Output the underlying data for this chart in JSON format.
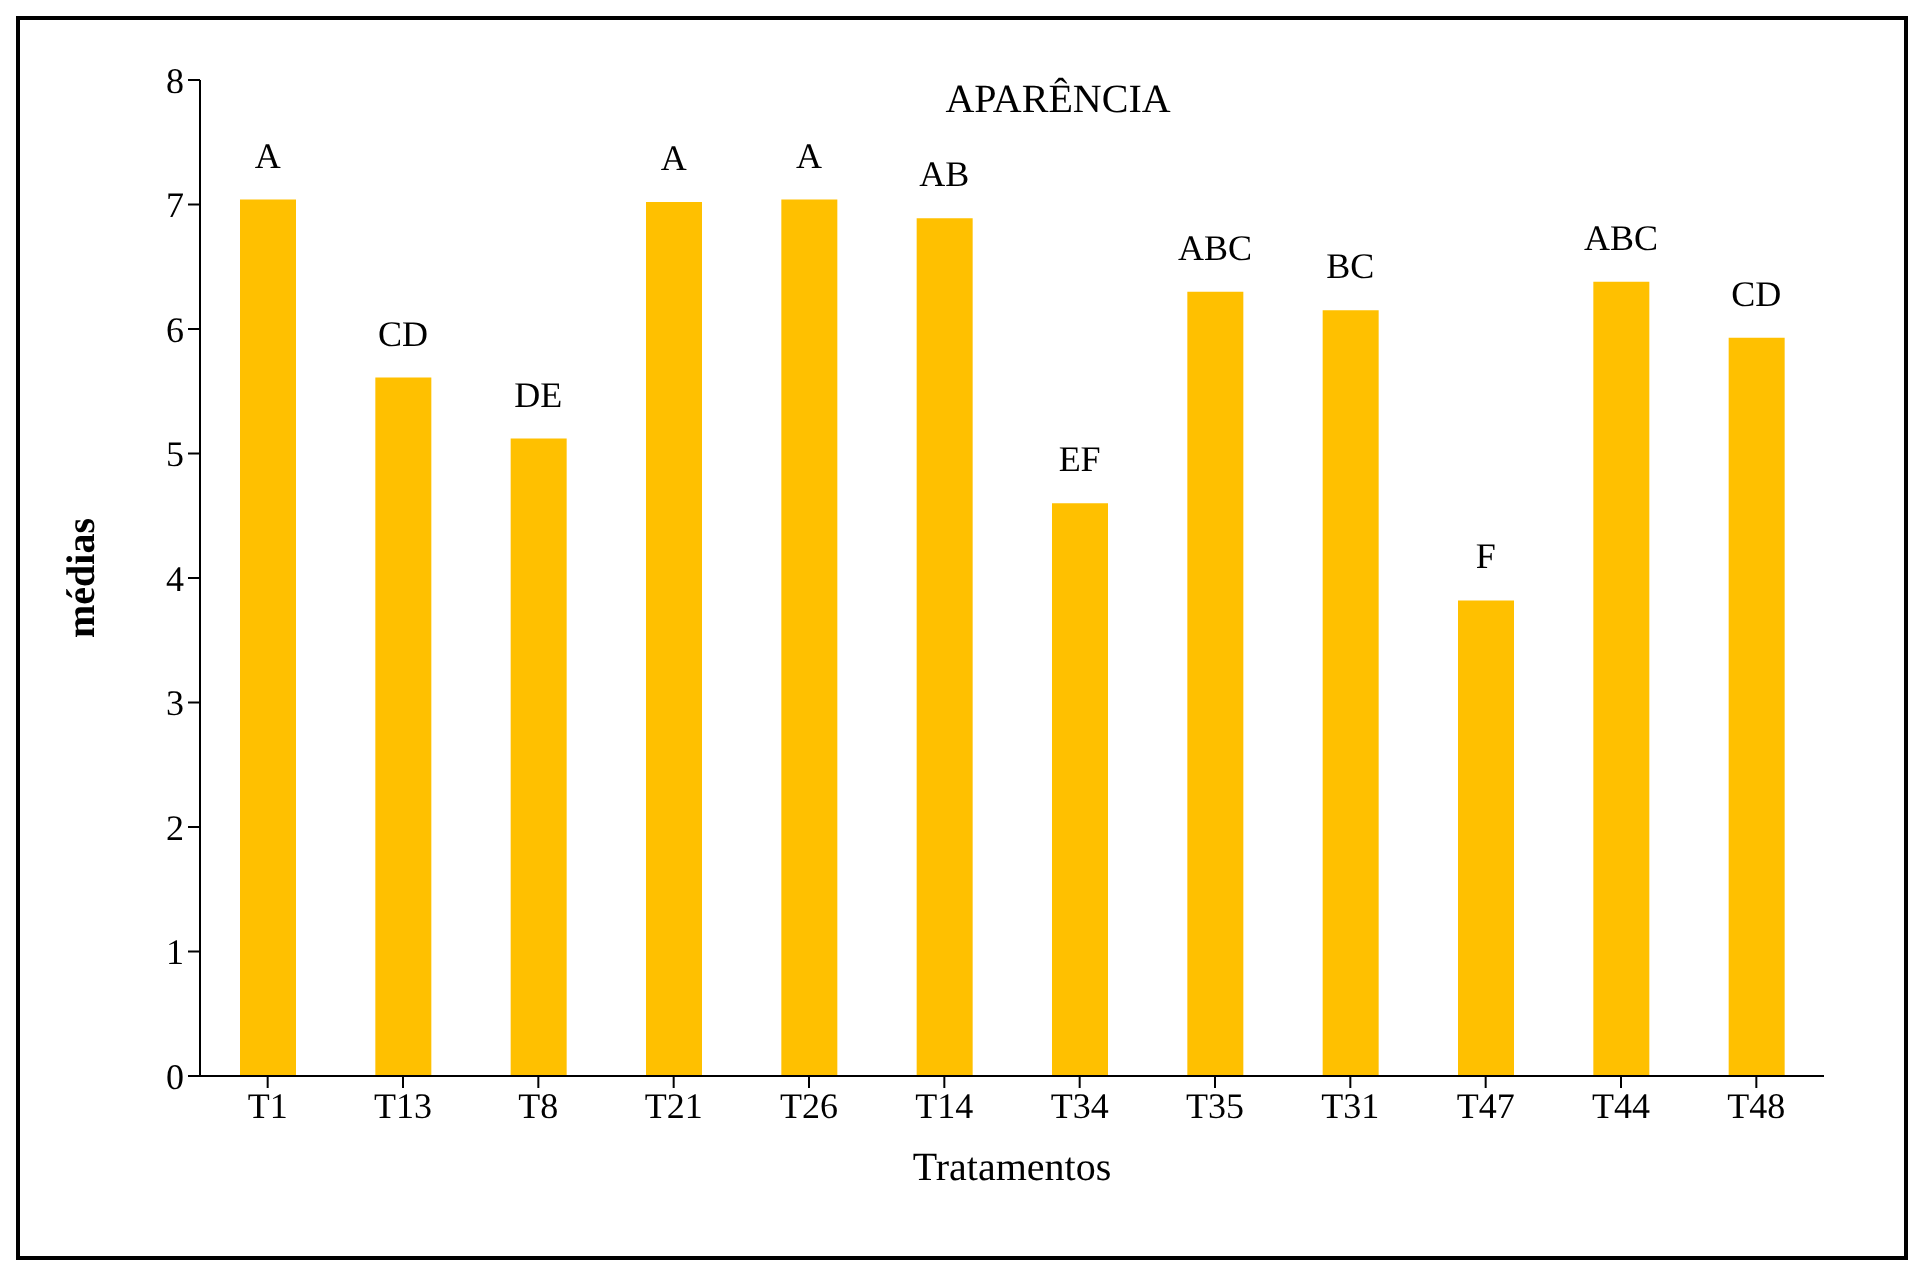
{
  "chart_data": {
    "type": "bar",
    "title": "APARÊNCIA",
    "xlabel": "Tratamentos",
    "ylabel": "médias",
    "categories": [
      "T1",
      "T13",
      "T8",
      "T21",
      "T26",
      "T14",
      "T34",
      "T35",
      "T31",
      "T47",
      "T44",
      "T48"
    ],
    "values": [
      7.04,
      5.61,
      5.12,
      7.02,
      7.04,
      6.89,
      4.6,
      6.3,
      6.15,
      3.82,
      6.38,
      5.93
    ],
    "color": "#ffc000",
    "ylim": [
      0,
      8
    ],
    "yticks": [
      0,
      1,
      2,
      3,
      4,
      5,
      6,
      7,
      8
    ],
    "grid": false,
    "legend": false,
    "annotations": [
      {
        "text": "A",
        "x": "T1",
        "y": 7.04
      },
      {
        "text": "CD",
        "x": "T13",
        "y": 5.61
      },
      {
        "text": "DE",
        "x": "T8",
        "y": 5.12
      },
      {
        "text": "A",
        "x": "T21",
        "y": 7.02
      },
      {
        "text": "A",
        "x": "T26",
        "y": 7.04
      },
      {
        "text": "AB",
        "x": "T14",
        "y": 6.89
      },
      {
        "text": "EF",
        "x": "T34",
        "y": 4.6
      },
      {
        "text": "ABC",
        "x": "T35",
        "y": 6.3
      },
      {
        "text": "BC",
        "x": "T31",
        "y": 6.15
      },
      {
        "text": "F",
        "x": "T47",
        "y": 3.82
      },
      {
        "text": "ABC",
        "x": "T44",
        "y": 6.38
      },
      {
        "text": "CD",
        "x": "T48",
        "y": 5.93
      }
    ]
  }
}
